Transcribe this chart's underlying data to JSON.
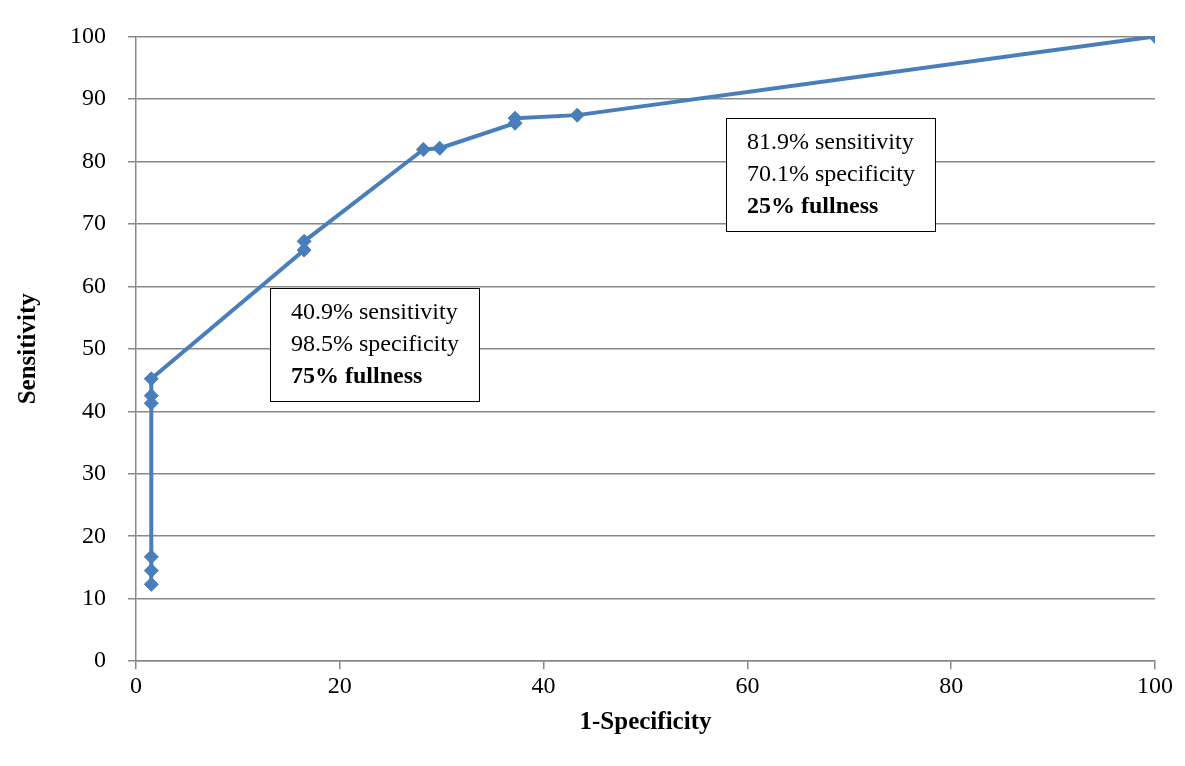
{
  "chart_data": {
    "type": "line",
    "xlabel": "1-Specificity",
    "ylabel": "Sensitivity",
    "x": [
      1.5,
      1.5,
      1.5,
      1.5,
      1.5,
      1.5,
      16.5,
      16.5,
      28.2,
      29.8,
      37.2,
      37.2,
      43.3,
      100
    ],
    "series": [
      {
        "color": "#4a7ebb",
        "values": [
          12.3,
          14.5,
          16.7,
          41.3,
          42.5,
          45.2,
          65.8,
          67.2,
          81.9,
          82.1,
          86.1,
          86.9,
          87.4,
          100
        ]
      }
    ],
    "xlim": [
      0,
      100
    ],
    "xticks": [
      0,
      20,
      40,
      60,
      80,
      100
    ],
    "ylim": [
      0,
      100
    ],
    "yticks": [
      0,
      10,
      20,
      30,
      40,
      50,
      60,
      70,
      80,
      90,
      100
    ],
    "grid": "y",
    "marker": "diamond",
    "line_style": "solid",
    "legend": false,
    "annotations": [
      "40.9% sensitivity\n98.5% specificity\n75% fullness",
      "81.9% sensitivity\n70.1% specificity\n25% fullness"
    ]
  }
}
